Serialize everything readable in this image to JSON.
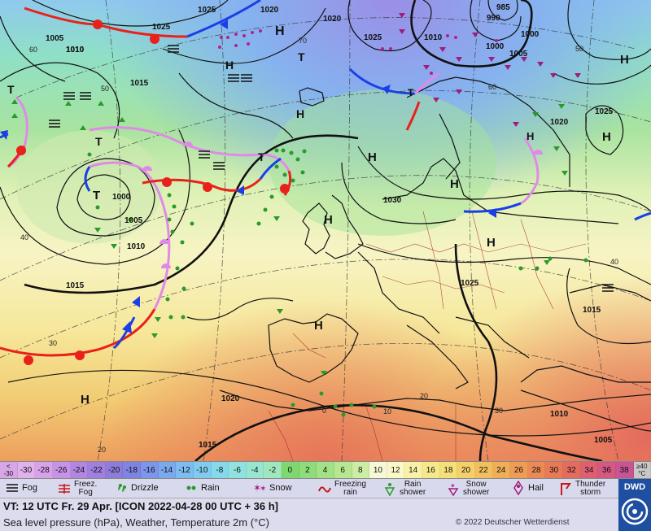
{
  "map": {
    "pressure_labels": [
      {
        "text": "1025"
      },
      {
        "text": "1020"
      },
      {
        "text": "1020"
      },
      {
        "text": "1025"
      },
      {
        "text": "1010"
      },
      {
        "text": "1005"
      },
      {
        "text": "1010"
      },
      {
        "text": "1015"
      },
      {
        "text": "1000"
      },
      {
        "text": "1005"
      },
      {
        "text": "1010"
      },
      {
        "text": "1015"
      },
      {
        "text": "1030"
      },
      {
        "text": "1025"
      },
      {
        "text": "1015"
      },
      {
        "text": "1020"
      },
      {
        "text": "1010"
      },
      {
        "text": "1005"
      },
      {
        "text": "1015"
      },
      {
        "text": "1025"
      },
      {
        "text": "1010"
      },
      {
        "text": "990"
      },
      {
        "text": "985"
      },
      {
        "text": "1000"
      },
      {
        "text": "1005"
      },
      {
        "text": "1000"
      },
      {
        "text": "1020"
      },
      {
        "text": "1025"
      }
    ],
    "centers": [
      {
        "text": "H"
      },
      {
        "text": "H"
      },
      {
        "text": "H"
      },
      {
        "text": "H"
      },
      {
        "text": "H"
      },
      {
        "text": "H"
      },
      {
        "text": "H"
      },
      {
        "text": "H"
      },
      {
        "text": "H"
      },
      {
        "text": "H"
      },
      {
        "text": "H"
      },
      {
        "text": "T"
      },
      {
        "text": "T"
      },
      {
        "text": "T"
      },
      {
        "text": "T"
      },
      {
        "text": "T"
      },
      {
        "text": "T"
      },
      {
        "text": "H"
      }
    ],
    "latlon_labels": [
      {
        "text": "60"
      },
      {
        "text": "50"
      },
      {
        "text": "40"
      },
      {
        "text": "30"
      },
      {
        "text": "20"
      },
      {
        "text": "70"
      },
      {
        "text": "50"
      },
      {
        "text": "40"
      },
      {
        "text": "30"
      },
      {
        "text": "20"
      },
      {
        "text": "10"
      },
      {
        "text": "0"
      },
      {
        "text": "60"
      }
    ]
  },
  "temperature_scale": [
    {
      "label": "<\n-30",
      "color": "#d6a6e6"
    },
    {
      "label": "-30",
      "color": "#e2b2ee"
    },
    {
      "label": "-28",
      "color": "#d8a2ea"
    },
    {
      "label": "-26",
      "color": "#c793e6"
    },
    {
      "label": "-24",
      "color": "#b287e2"
    },
    {
      "label": "-22",
      "color": "#9f80de"
    },
    {
      "label": "-20",
      "color": "#8d7cda"
    },
    {
      "label": "-18",
      "color": "#7f84e2"
    },
    {
      "label": "-16",
      "color": "#7b96ea"
    },
    {
      "label": "-14",
      "color": "#7aa9ee"
    },
    {
      "label": "-12",
      "color": "#7cbcf0"
    },
    {
      "label": "-10",
      "color": "#80ccef"
    },
    {
      "label": "-8",
      "color": "#86d9ea"
    },
    {
      "label": "-6",
      "color": "#8fe2e0"
    },
    {
      "label": "-4",
      "color": "#98e6d0"
    },
    {
      "label": "-2",
      "color": "#9fe8bd"
    },
    {
      "label": "0",
      "color": "#7fd86f"
    },
    {
      "label": "2",
      "color": "#8fdc7a"
    },
    {
      "label": "4",
      "color": "#a3e186"
    },
    {
      "label": "6",
      "color": "#b8e792"
    },
    {
      "label": "8",
      "color": "#cdeea2"
    },
    {
      "label": "10",
      "color": "#f6f8d6"
    },
    {
      "label": "12",
      "color": "#fbf8c8"
    },
    {
      "label": "14",
      "color": "#f9f2a6"
    },
    {
      "label": "16",
      "color": "#f6e98c"
    },
    {
      "label": "18",
      "color": "#f4df78"
    },
    {
      "label": "20",
      "color": "#f3d06a"
    },
    {
      "label": "22",
      "color": "#f2bf5e"
    },
    {
      "label": "24",
      "color": "#f0ae58"
    },
    {
      "label": "26",
      "color": "#ee9c56"
    },
    {
      "label": "28",
      "color": "#ec8a56"
    },
    {
      "label": "30",
      "color": "#e97a58"
    },
    {
      "label": "32",
      "color": "#e46c5e"
    },
    {
      "label": "34",
      "color": "#de6070"
    },
    {
      "label": "36",
      "color": "#d45882"
    },
    {
      "label": "38",
      "color": "#c85494"
    },
    {
      "label": "≥40\n°C",
      "color": "#c8c8c8"
    }
  ],
  "weather_legend": [
    {
      "label": "Fog",
      "icon": "fog-icon"
    },
    {
      "label": "Freez.\nFog",
      "icon": "freezing-fog-icon"
    },
    {
      "label": "Drizzle",
      "icon": "drizzle-icon"
    },
    {
      "label": "Rain",
      "icon": "rain-icon"
    },
    {
      "label": "Snow",
      "icon": "snow-icon"
    },
    {
      "label": "Freezing\nrain",
      "icon": "freezing-rain-icon"
    },
    {
      "label": "Rain\nshower",
      "icon": "rain-shower-icon"
    },
    {
      "label": "Snow\nshower",
      "icon": "snow-shower-icon"
    },
    {
      "label": "Hail",
      "icon": "hail-icon"
    },
    {
      "label": "Thunder\nstorm",
      "icon": "thunderstorm-icon"
    }
  ],
  "footer": {
    "valid_time": "VT: 12 UTC Fr.  29 Apr. [ICON 2022-04-28  00 UTC + 36 h]",
    "description": "Sea level pressure (hPa), Weather, Temperature 2m (°C)",
    "copyright": "© 2022 Deutscher Wetterdienst",
    "logo_text": "DWD"
  },
  "colors": {
    "warm_front": "#e8221a",
    "cold_front": "#1a3fe6",
    "occluded_front": "#e08ae8",
    "isobar": "#111111",
    "legend_bg": "#d9d9ee",
    "dwd_blue": "#1f4fa0"
  }
}
